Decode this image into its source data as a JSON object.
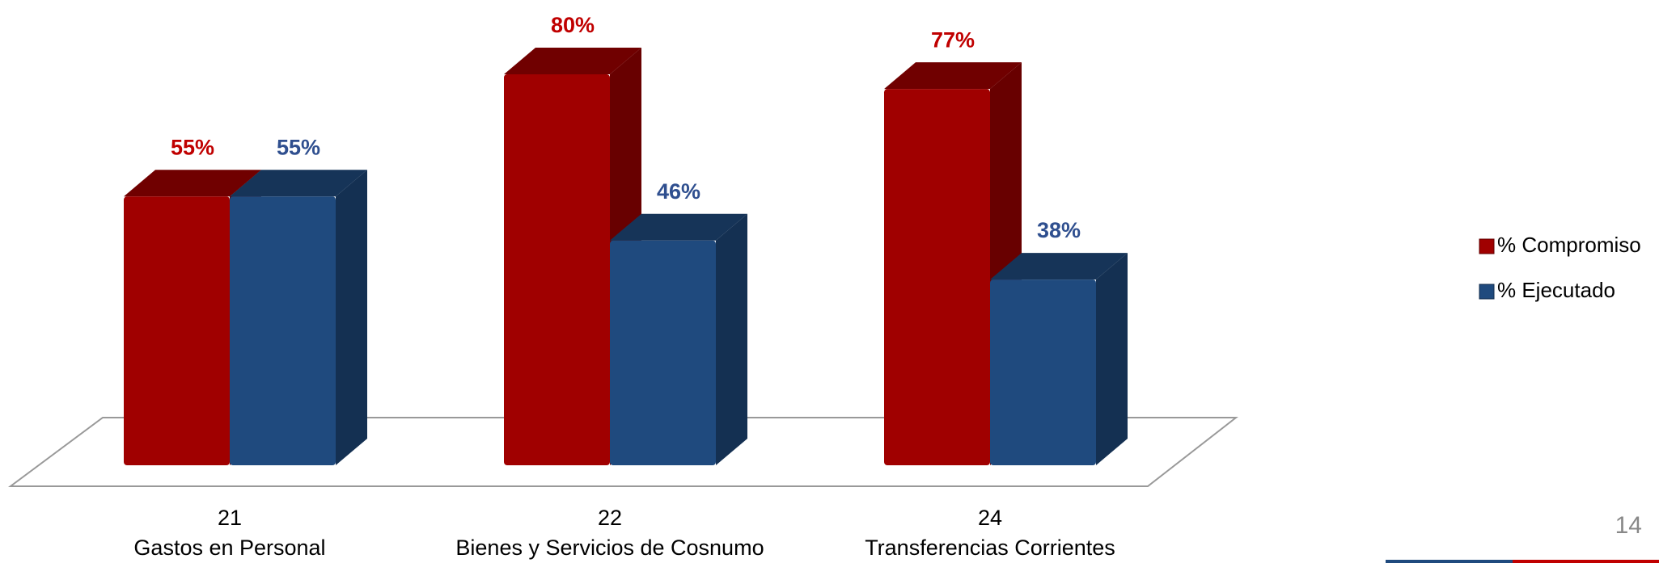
{
  "chart_data": {
    "type": "bar3d",
    "categories": [
      [
        "21",
        "Gastos en Personal"
      ],
      [
        "22",
        "Bienes y Servicios de Cosnumo"
      ],
      [
        "24",
        "Transferencias Corrientes"
      ]
    ],
    "series": [
      {
        "name": "% Compromiso",
        "color": "#a00000",
        "label_color": "#c00000",
        "values": [
          55,
          80,
          77
        ],
        "value_labels": [
          "55%",
          "80%",
          "77%"
        ]
      },
      {
        "name": "% Ejecutado",
        "color": "#1f4a7e",
        "label_color": "#2f4f8f",
        "values": [
          55,
          46,
          38
        ],
        "value_labels": [
          "55%",
          "46%",
          "38%"
        ]
      }
    ],
    "legend": "right"
  },
  "page_number": "14"
}
